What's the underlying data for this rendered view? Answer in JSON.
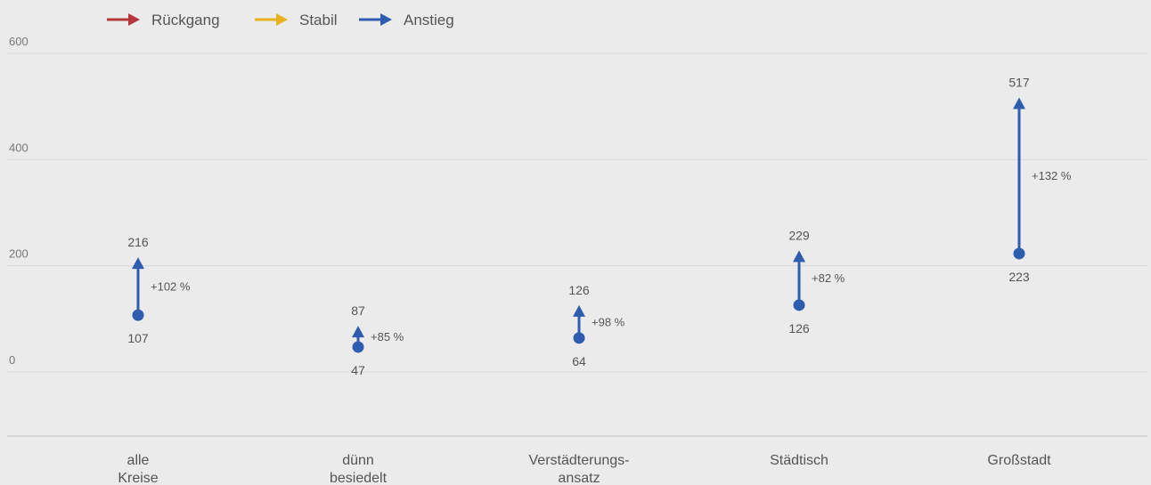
{
  "chart_data": {
    "type": "arrow-change",
    "title": "",
    "xlabel": "",
    "ylabel": "",
    "ylim": [
      -120,
      600
    ],
    "yticks": [
      0,
      200,
      400,
      600
    ],
    "grid": true,
    "legend_position": "top-left",
    "legend": [
      {
        "label": "Rückgang",
        "color": "#b5373a"
      },
      {
        "label": "Stabil",
        "color": "#e6b31e"
      },
      {
        "label": "Anstieg",
        "color": "#2e5db0"
      }
    ],
    "categories": [
      {
        "label": [
          "alle",
          "Kreise"
        ],
        "start": 107,
        "end": 216,
        "change": "+102 %",
        "trend": "Anstieg"
      },
      {
        "label": [
          "dünn",
          "besiedelt"
        ],
        "start": 47,
        "end": 87,
        "change": "+85 %",
        "trend": "Anstieg"
      },
      {
        "label": [
          "Verstädterungs-",
          "ansatz"
        ],
        "start": 64,
        "end": 126,
        "change": "+98 %",
        "trend": "Anstieg"
      },
      {
        "label": [
          "Städtisch"
        ],
        "start": 126,
        "end": 229,
        "change": "+82 %",
        "trend": "Anstieg"
      },
      {
        "label": [
          "Großstadt"
        ],
        "start": 223,
        "end": 517,
        "change": "+132 %",
        "trend": "Anstieg"
      }
    ]
  }
}
